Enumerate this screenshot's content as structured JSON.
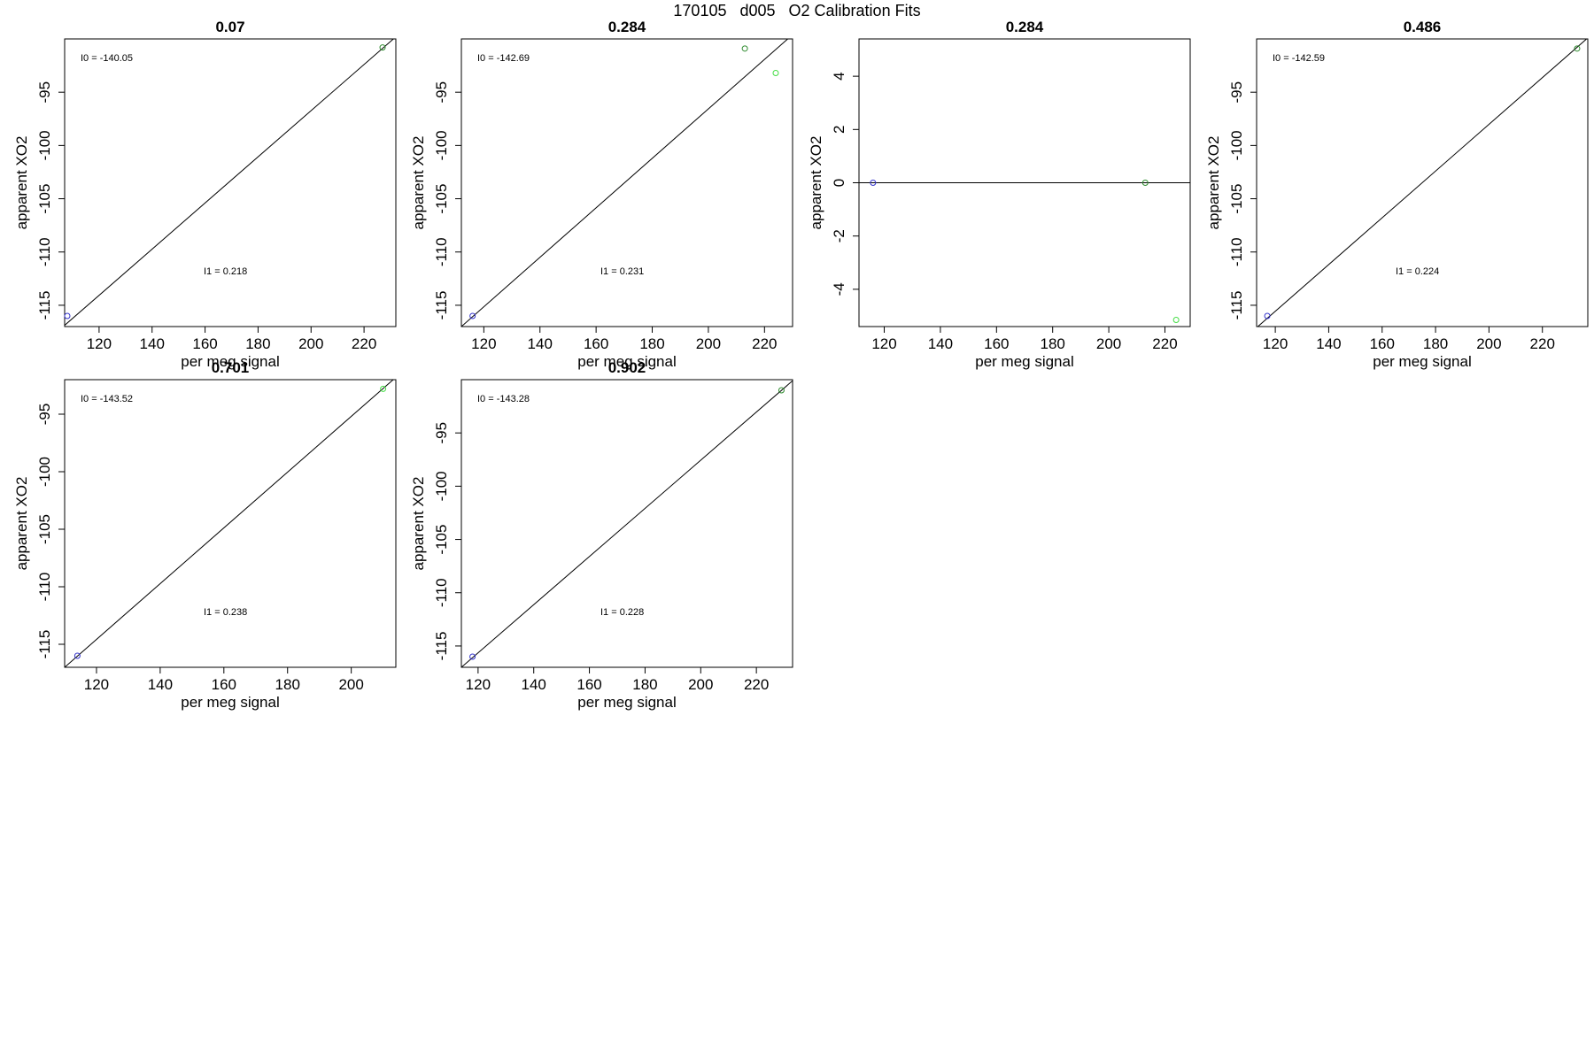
{
  "page_title": "170105   d005   O2 Calibration Fits",
  "chart_data": [
    {
      "type": "scatter",
      "title": "0.07",
      "xlabel": "per meg signal",
      "ylabel": "apparent XO2",
      "xlim": [
        107,
        232
      ],
      "ylim": [
        -117,
        -90
      ],
      "xticks": [
        120,
        140,
        160,
        180,
        200,
        220
      ],
      "yticks": [
        -115,
        -110,
        -105,
        -100,
        -95
      ],
      "points": [
        {
          "x": 108,
          "y": -116.0,
          "color": "#3333cc"
        },
        {
          "x": 227,
          "y": -90.8,
          "color": "#2e8b2e"
        }
      ],
      "fit_line": {
        "x0": 106,
        "y0": -117.1,
        "x1": 232,
        "y1": -89.8
      },
      "annotations": [
        {
          "text": "I0 =  -140.05",
          "pos": "top-left"
        },
        {
          "text": "I1 =  0.218",
          "pos": "lower-center"
        }
      ]
    },
    {
      "type": "scatter",
      "title": "0.284",
      "xlabel": "per meg signal",
      "ylabel": "apparent XO2",
      "xlim": [
        112,
        230
      ],
      "ylim": [
        -117,
        -90
      ],
      "xticks": [
        120,
        140,
        160,
        180,
        200,
        220
      ],
      "yticks": [
        -115,
        -110,
        -105,
        -100,
        -95
      ],
      "points": [
        {
          "x": 116,
          "y": -116.0,
          "color": "#3333cc"
        },
        {
          "x": 213,
          "y": -90.9,
          "color": "#2e8b2e"
        },
        {
          "x": 224,
          "y": -93.2,
          "color": "#44dd44"
        }
      ],
      "fit_line": {
        "x0": 112,
        "y0": -117.0,
        "x1": 230,
        "y1": -89.6
      },
      "annotations": [
        {
          "text": "I0 =  -142.69",
          "pos": "top-left"
        },
        {
          "text": "I1 =  0.231",
          "pos": "lower-center"
        }
      ]
    },
    {
      "type": "scatter",
      "title": "0.284",
      "xlabel": "per meg signal",
      "ylabel": "apparent XO2",
      "xlim": [
        111,
        229
      ],
      "ylim": [
        -5.4,
        5.4
      ],
      "xticks": [
        120,
        140,
        160,
        180,
        200,
        220
      ],
      "yticks": [
        -4,
        -2,
        0,
        2,
        4
      ],
      "points": [
        {
          "x": 116,
          "y": 0.0,
          "color": "#3333cc"
        },
        {
          "x": 213,
          "y": 0.0,
          "color": "#2e8b2e"
        },
        {
          "x": 224,
          "y": -5.15,
          "color": "#44dd44"
        }
      ],
      "fit_line": {
        "x0": 111,
        "y0": 0.0,
        "x1": 229,
        "y1": 0.0
      },
      "annotations": []
    },
    {
      "type": "scatter",
      "title": "0.486",
      "xlabel": "per meg signal",
      "ylabel": "apparent XO2",
      "xlim": [
        113,
        237
      ],
      "ylim": [
        -117,
        -90
      ],
      "xticks": [
        120,
        140,
        160,
        180,
        200,
        220
      ],
      "yticks": [
        -115,
        -110,
        -105,
        -100,
        -95
      ],
      "points": [
        {
          "x": 117,
          "y": -116.0,
          "color": "#3333cc"
        },
        {
          "x": 233,
          "y": -90.9,
          "color": "#2e8b2e"
        }
      ],
      "fit_line": {
        "x0": 113,
        "y0": -117.1,
        "x1": 237,
        "y1": -89.9
      },
      "annotations": [
        {
          "text": "I0 =  -142.59",
          "pos": "top-left"
        },
        {
          "text": "I1 =  0.224",
          "pos": "lower-center"
        }
      ]
    },
    {
      "type": "scatter",
      "title": "0.701",
      "xlabel": "per meg signal",
      "ylabel": "apparent XO2",
      "xlim": [
        110,
        214
      ],
      "ylim": [
        -117,
        -92
      ],
      "xticks": [
        120,
        140,
        160,
        180,
        200
      ],
      "yticks": [
        -115,
        -110,
        -105,
        -100,
        -95
      ],
      "points": [
        {
          "x": 114,
          "y": -116.0,
          "color": "#3333cc"
        },
        {
          "x": 210,
          "y": -92.8,
          "color": "#44dd44"
        }
      ],
      "fit_line": {
        "x0": 110,
        "y0": -117.0,
        "x1": 214,
        "y1": -91.8
      },
      "annotations": [
        {
          "text": "I0 =  -143.52",
          "pos": "top-left"
        },
        {
          "text": "I1 =  0.238",
          "pos": "lower-center"
        }
      ]
    },
    {
      "type": "scatter",
      "title": "0.902",
      "xlabel": "per meg signal",
      "ylabel": "apparent XO2",
      "xlim": [
        114,
        233
      ],
      "ylim": [
        -117,
        -90
      ],
      "xticks": [
        120,
        140,
        160,
        180,
        200,
        220
      ],
      "yticks": [
        -115,
        -110,
        -105,
        -100,
        -95
      ],
      "points": [
        {
          "x": 118,
          "y": -116.0,
          "color": "#3333cc"
        },
        {
          "x": 229,
          "y": -91.0,
          "color": "#2e8b2e"
        }
      ],
      "fit_line": {
        "x0": 114,
        "y0": -117.0,
        "x1": 233,
        "y1": -90.1
      },
      "annotations": [
        {
          "text": "I0 =  -143.28",
          "pos": "top-left"
        },
        {
          "text": "I1 =  0.228",
          "pos": "lower-center"
        }
      ]
    }
  ]
}
